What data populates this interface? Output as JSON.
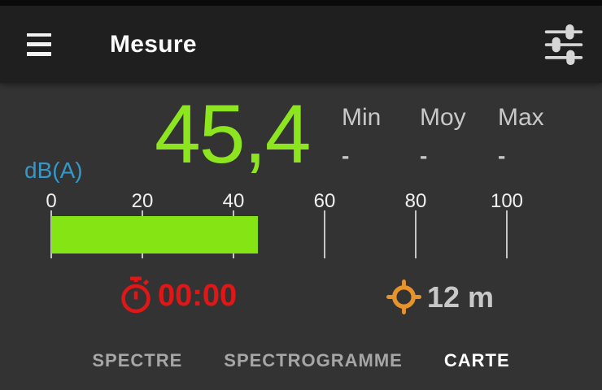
{
  "appbar": {
    "title": "Mesure",
    "menu_icon": "hamburger-icon",
    "settings_icon": "tune-sliders-icon"
  },
  "meter": {
    "unit": "dB(A)",
    "value": 45.4,
    "value_display": "45,4",
    "min": 0,
    "max": 100,
    "tick_labels": [
      "0",
      "20",
      "40",
      "60",
      "80",
      "100"
    ],
    "bar_color": "#84e414",
    "value_color": "#8ce51e",
    "unit_color": "#3498c8"
  },
  "stats": [
    {
      "label": "Min",
      "value": "-"
    },
    {
      "label": "Moy",
      "value": "-"
    },
    {
      "label": "Max",
      "value": "-"
    }
  ],
  "status": {
    "timer": {
      "icon": "stopwatch-icon",
      "value": "00:00",
      "color": "#e11717"
    },
    "distance": {
      "icon": "gps-crosshair-icon",
      "value": "12 m",
      "icon_color": "#e6932e"
    }
  },
  "tabs": [
    {
      "label": "SPECTRE",
      "active": false
    },
    {
      "label": "SPECTROGRAMME",
      "active": false
    },
    {
      "label": "CARTE",
      "active": true
    }
  ],
  "colors": {
    "appbar_bg": "#1f1f1f",
    "body_bg": "#333333",
    "text_light": "#c8c8c8",
    "tick_color": "#c4c4c4",
    "tab_inactive": "#a6a6a6",
    "tab_active": "#ffffff"
  }
}
